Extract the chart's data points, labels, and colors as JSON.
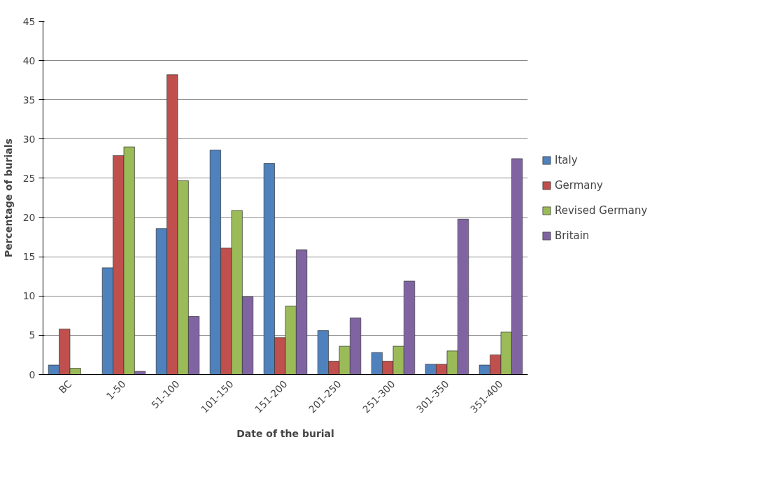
{
  "chart_data": {
    "type": "bar",
    "xlabel": "Date of the burial",
    "ylabel": "Percentage of burials",
    "categories": [
      "BC",
      "1-50",
      "51-100",
      "101-150",
      "151-200",
      "201-250",
      "251-300",
      "301-350",
      "351-400"
    ],
    "series": [
      {
        "name": "Italy",
        "color": "#4f81bd",
        "values": [
          1.2,
          13.6,
          18.6,
          28.6,
          26.9,
          5.6,
          2.8,
          1.3,
          1.2
        ]
      },
      {
        "name": "Germany",
        "color": "#c0504d",
        "values": [
          5.8,
          27.9,
          38.2,
          16.1,
          4.7,
          1.7,
          1.7,
          1.3,
          2.5
        ]
      },
      {
        "name": "Revised Germany",
        "color": "#9bbb59",
        "values": [
          0.8,
          29.0,
          24.7,
          20.9,
          8.7,
          3.6,
          3.6,
          3.0,
          5.4
        ]
      },
      {
        "name": "Britain",
        "color": "#8064a2",
        "values": [
          null,
          0.4,
          7.4,
          9.9,
          15.9,
          7.2,
          11.9,
          19.8,
          27.5
        ]
      }
    ],
    "ylim": [
      0,
      45
    ],
    "yticks": [
      0,
      5,
      10,
      15,
      20,
      25,
      30,
      35,
      40,
      45
    ],
    "grid": "y",
    "legend": "right"
  }
}
